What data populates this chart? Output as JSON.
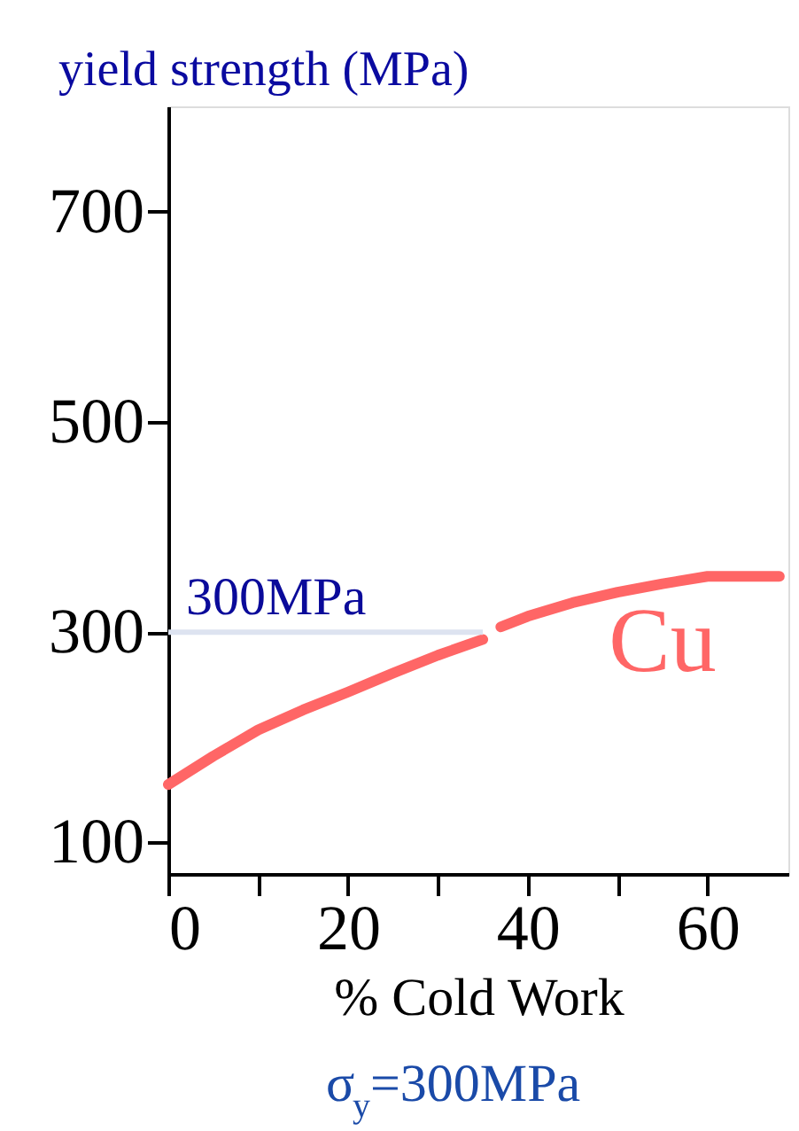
{
  "chart_data": {
    "type": "line",
    "title": "yield strength (MPa)",
    "xlabel": "% Cold Work",
    "x": [
      0,
      5,
      10,
      15,
      20,
      25,
      30,
      35,
      36,
      37,
      40,
      45,
      50,
      55,
      60,
      65,
      68
    ],
    "series": [
      {
        "name": "Cu",
        "color": "#ff6666",
        "values": [
          155,
          182,
          207,
          226,
          243,
          261,
          278,
          293,
          null,
          305,
          315,
          328,
          338,
          346,
          353,
          353,
          353
        ]
      }
    ],
    "xlim": [
      0,
      69
    ],
    "xticks": [
      0,
      {
        "value": 10,
        "label": null
      },
      20,
      {
        "value": 30,
        "label": null
      },
      40,
      {
        "value": 50,
        "label": null
      },
      60
    ],
    "ylim": [
      70,
      800
    ],
    "yticks": [
      100,
      300,
      500,
      700
    ],
    "ref_lines": [
      {
        "axis": "y",
        "value": 300,
        "label": "300MPa",
        "color": "#dde3f0"
      }
    ],
    "annotations": [
      "σ$_{y}$=300MPa"
    ],
    "grid": false,
    "legend": false,
    "marker": "none",
    "line_style": "solid"
  }
}
